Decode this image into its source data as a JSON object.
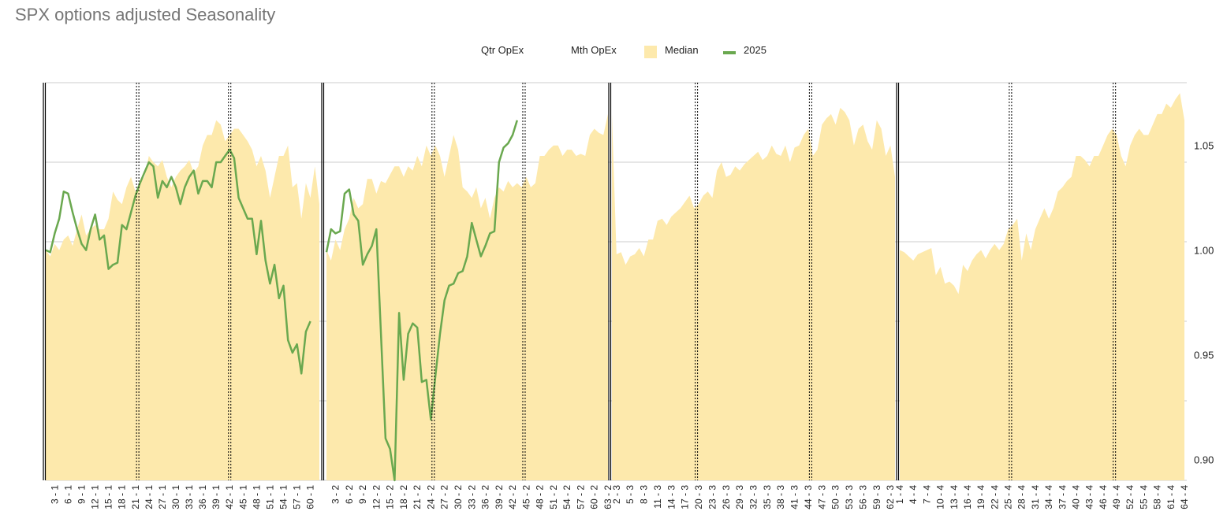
{
  "title": "SPX options adjusted Seasonality",
  "legend": {
    "qtr_opex": "Qtr OpEx",
    "mth_opex": "Mth OpEx",
    "median": "Median",
    "year": "2025"
  },
  "colors": {
    "median_fill": "#fde9ac",
    "series_2025": "#6aa84f",
    "grid": "#cccccc",
    "qtr_opex": "#000000",
    "mth_opex": "#000000"
  },
  "chart_data": {
    "type": "area",
    "title": "SPX options adjusted Seasonality",
    "xlabel": "",
    "ylabel": "",
    "ylim": [
      0.89,
      1.08
    ],
    "y_ticks": [
      "1.05",
      "1.00",
      "0.95",
      "0.90"
    ],
    "y_tick_values": [
      1.05,
      1.0,
      0.95,
      0.9
    ],
    "gridlines": [
      1.08,
      1.042,
      1.004,
      0.966,
      0.928,
      0.89
    ],
    "legend_position": "top",
    "x_label_every": 3,
    "qtr_opex_separators": [
      {
        "quarter": 2,
        "after_day": 63
      },
      {
        "quarter": 3,
        "after_day": 63
      },
      {
        "quarter": 4,
        "after_day": 64
      }
    ],
    "mth_opex_lines": [
      {
        "quarter": 1,
        "day": 21.5
      },
      {
        "quarter": 1,
        "day": 42
      },
      {
        "quarter": 2,
        "day": 24.5
      },
      {
        "quarter": 2,
        "day": 44.5
      },
      {
        "quarter": 3,
        "day": 19.5
      },
      {
        "quarter": 3,
        "day": 44.5
      },
      {
        "quarter": 4,
        "day": 25.5
      },
      {
        "quarter": 4,
        "day": 48.5
      }
    ],
    "quarters": [
      {
        "quarter": 1,
        "days": 62,
        "median": [
          1.0,
          0.997,
          1.003,
          1.0,
          1.005,
          1.007,
          1.002,
          1.01,
          1.017,
          1.007,
          1.01,
          1.012,
          1.01,
          1.01,
          1.015,
          1.028,
          1.024,
          1.022,
          1.03,
          1.035,
          1.028,
          1.032,
          1.035,
          1.045,
          1.042,
          1.04,
          1.043,
          1.035,
          1.03,
          1.035,
          1.038,
          1.04,
          1.043,
          1.037,
          1.04,
          1.05,
          1.055,
          1.055,
          1.062,
          1.06,
          1.052,
          1.055,
          1.058,
          1.058,
          1.055,
          1.052,
          1.048,
          1.04,
          1.045,
          1.038,
          1.025,
          1.035,
          1.045,
          1.045,
          1.05,
          1.03,
          1.032,
          1.015,
          1.032,
          1.025,
          1.04,
          1.022
        ],
        "series_2025": [
          1.0,
          0.999,
          1.008,
          1.015,
          1.028,
          1.027,
          1.018,
          1.01,
          1.003,
          1.0,
          1.01,
          1.017,
          1.005,
          1.007,
          0.991,
          0.993,
          0.994,
          1.012,
          1.01,
          1.018,
          1.026,
          1.032,
          1.037,
          1.042,
          1.04,
          1.025,
          1.033,
          1.03,
          1.035,
          1.03,
          1.022,
          1.03,
          1.035,
          1.038,
          1.027,
          1.033,
          1.033,
          1.03,
          1.042,
          1.042,
          1.045,
          1.048,
          1.044,
          1.025,
          1.02,
          1.015,
          1.015,
          0.998,
          1.014,
          0.995,
          0.984,
          0.993,
          0.977,
          0.983,
          0.957,
          0.951,
          0.955,
          0.941,
          0.961,
          0.966
        ]
      },
      {
        "quarter": 2,
        "days": 63,
        "median": [
          1.0,
          0.995,
          1.005,
          1.0,
          1.01,
          1.015,
          1.025,
          1.02,
          1.022,
          1.034,
          1.034,
          1.027,
          1.033,
          1.032,
          1.036,
          1.04,
          1.04,
          1.035,
          1.04,
          1.038,
          1.045,
          1.04,
          1.05,
          1.045,
          1.05,
          1.045,
          1.035,
          1.045,
          1.055,
          1.048,
          1.03,
          1.028,
          1.025,
          1.03,
          1.02,
          1.025,
          1.015,
          1.025,
          1.03,
          1.028,
          1.033,
          1.03,
          1.032,
          1.03,
          1.035,
          1.03,
          1.032,
          1.045,
          1.045,
          1.048,
          1.05,
          1.05,
          1.045,
          1.048,
          1.048,
          1.045,
          1.046,
          1.045,
          1.055,
          1.058,
          1.056,
          1.055,
          1.065
        ],
        "series_2025": [
          0.999,
          1.01,
          1.008,
          1.009,
          1.027,
          1.029,
          1.017,
          1.014,
          0.993,
          0.998,
          1.002,
          1.01,
          0.96,
          0.91,
          0.905,
          0.89,
          0.97,
          0.938,
          0.96,
          0.965,
          0.963,
          0.937,
          0.938,
          0.919,
          0.94,
          0.96,
          0.976,
          0.983,
          0.984,
          0.989,
          0.99,
          0.997,
          1.013,
          1.005,
          0.997,
          1.002,
          1.008,
          1.009,
          1.042,
          1.049,
          1.051,
          1.055,
          1.062
        ]
      },
      {
        "quarter": 3,
        "days": 63,
        "median": [
          1.065,
          0.998,
          0.999,
          0.993,
          0.997,
          0.998,
          1.001,
          0.997,
          1.005,
          1.005,
          1.014,
          1.015,
          1.012,
          1.016,
          1.018,
          1.02,
          1.023,
          1.026,
          1.02,
          1.022,
          1.026,
          1.028,
          1.025,
          1.038,
          1.042,
          1.035,
          1.036,
          1.04,
          1.038,
          1.041,
          1.043,
          1.045,
          1.047,
          1.043,
          1.045,
          1.05,
          1.046,
          1.045,
          1.05,
          1.042,
          1.049,
          1.05,
          1.055,
          1.058,
          1.045,
          1.048,
          1.06,
          1.063,
          1.065,
          1.06,
          1.068,
          1.066,
          1.062,
          1.05,
          1.058,
          1.06,
          1.052,
          1.048,
          1.062,
          1.058,
          1.045,
          1.05,
          1.035
        ]
      },
      {
        "quarter": 4,
        "days": 64,
        "median": [
          1.0,
          0.999,
          0.997,
          0.995,
          0.998,
          0.999,
          1.0,
          1.001,
          0.988,
          0.992,
          0.984,
          0.985,
          0.983,
          0.979,
          0.993,
          0.99,
          0.995,
          0.998,
          1.0,
          0.996,
          1.0,
          1.003,
          1.0,
          1.003,
          1.01,
          1.012,
          1.015,
          0.995,
          1.008,
          1.0,
          1.01,
          1.015,
          1.02,
          1.015,
          1.02,
          1.028,
          1.03,
          1.033,
          1.035,
          1.045,
          1.045,
          1.043,
          1.04,
          1.045,
          1.045,
          1.05,
          1.055,
          1.058,
          1.055,
          1.045,
          1.04,
          1.05,
          1.055,
          1.058,
          1.055,
          1.055,
          1.06,
          1.065,
          1.065,
          1.07,
          1.068,
          1.072,
          1.075,
          1.062
        ]
      }
    ],
    "x_tick_labels": {
      "q1": [
        "3 - 1",
        "6 - 1",
        "9 - 1",
        "12 - 1",
        "15 - 1",
        "18 - 1",
        "21 - 1",
        "24 - 1",
        "27 - 1",
        "30 - 1",
        "33 - 1",
        "36 - 1",
        "39 - 1",
        "42 - 1",
        "45 - 1",
        "48 - 1",
        "51 - 1",
        "54 - 1",
        "57 - 1",
        "60 - 1"
      ],
      "q2": [
        "3 - 2",
        "6 - 2",
        "9 - 2",
        "12 - 2",
        "15 - 2",
        "18 - 2",
        "21 - 2",
        "24 - 2",
        "27 - 2",
        "30 - 2",
        "33 - 2",
        "36 - 2",
        "39 - 2",
        "42 - 2",
        "45 - 2",
        "48 - 2",
        "51 - 2",
        "54 - 2",
        "57 - 2",
        "60 - 2",
        "63 - 2"
      ],
      "q3": [
        "2 - 3",
        "5 - 3",
        "8 - 3",
        "11 - 3",
        "14 - 3",
        "17 - 3",
        "20 - 3",
        "23 - 3",
        "26 - 3",
        "29 - 3",
        "32 - 3",
        "35 - 3",
        "38 - 3",
        "41 - 3",
        "44 - 3",
        "47 - 3",
        "50 - 3",
        "53 - 3",
        "56 - 3",
        "59 - 3",
        "62 - 3"
      ],
      "q4": [
        "1 - 4",
        "4 - 4",
        "7 - 4",
        "10 - 4",
        "13 - 4",
        "16 - 4",
        "19 - 4",
        "22 - 4",
        "25 - 4",
        "28 - 4",
        "31 - 4",
        "34 - 4",
        "37 - 4",
        "40 - 4",
        "43 - 4",
        "46 - 4",
        "49 - 4",
        "52 - 4",
        "55 - 4",
        "58 - 4",
        "61 - 4",
        "64 - 4"
      ]
    }
  }
}
